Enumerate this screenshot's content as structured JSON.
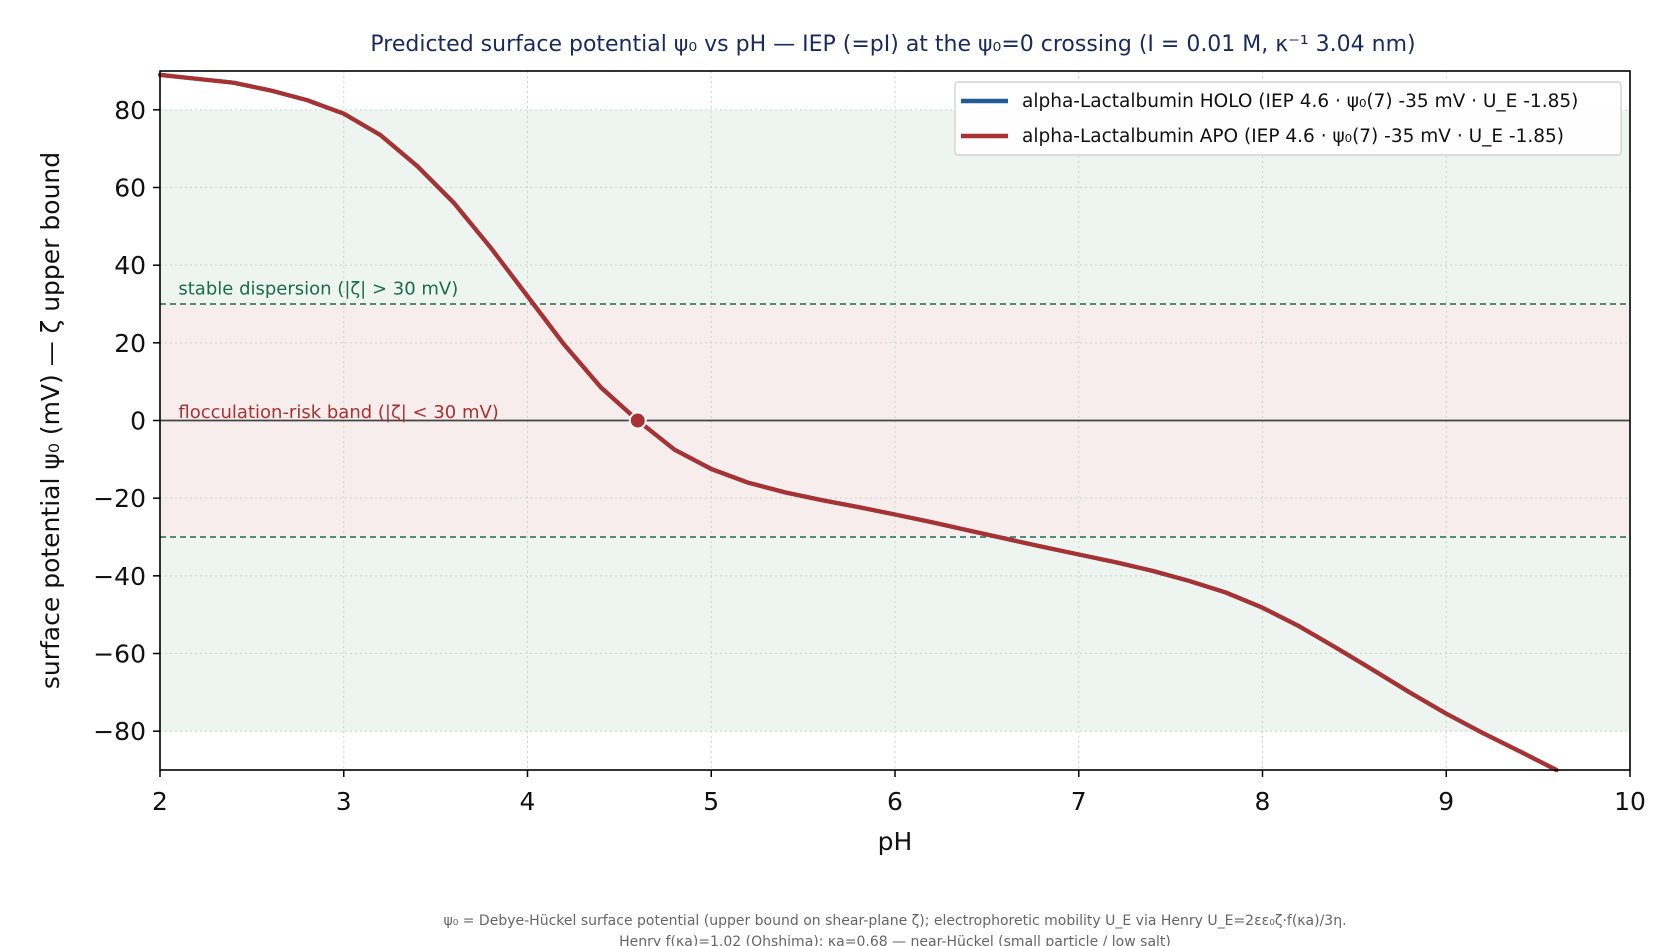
{
  "chart_data": {
    "type": "line",
    "title": "Predicted surface potential ψ₀ vs pH — IEP (=pI) at the ψ₀=0 crossing (I = 0.01 M, κ⁻¹ 3.04 nm)",
    "xlabel": "pH",
    "ylabel": "surface potential ψ₀ (mV) — ζ upper bound",
    "xlim": [
      2,
      10
    ],
    "ylim": [
      -90,
      90
    ],
    "xticks": [
      2,
      3,
      4,
      5,
      6,
      7,
      8,
      9,
      10
    ],
    "yticks": [
      -80,
      -60,
      -40,
      -20,
      0,
      20,
      40,
      60,
      80
    ],
    "xtick_labels": [
      "2",
      "3",
      "4",
      "5",
      "6",
      "7",
      "8",
      "9",
      "10"
    ],
    "ytick_labels": [
      "−80",
      "−60",
      "−40",
      "−20",
      "0",
      "20",
      "40",
      "60",
      "80"
    ],
    "grid": true,
    "legend_position": "top-right",
    "series": [
      {
        "name": "alpha-Lactalbumin HOLO (IEP 4.6 · ψ₀(7) -35 mV · U_E -1.85)",
        "color": "#1f5a99",
        "x": [
          2.0,
          2.2,
          2.4,
          2.6,
          2.8,
          3.0,
          3.2,
          3.4,
          3.6,
          3.8,
          4.0,
          4.2,
          4.4,
          4.6,
          4.8,
          5.0,
          5.2,
          5.4,
          5.6,
          5.8,
          6.0,
          6.2,
          6.4,
          6.6,
          6.8,
          7.0,
          7.2,
          7.4,
          7.6,
          7.8,
          8.0,
          8.2,
          8.4,
          8.6,
          8.8,
          9.0,
          9.2,
          9.4,
          9.6
        ],
        "y": [
          89,
          88,
          87,
          85,
          82.5,
          79,
          73.5,
          65.5,
          56,
          44.5,
          32,
          19.5,
          8.5,
          0,
          -7.5,
          -12.5,
          -16,
          -18.5,
          -20.5,
          -22.3,
          -24.2,
          -26.2,
          -28.3,
          -30.4,
          -32.5,
          -34.5,
          -36.5,
          -38.7,
          -41.3,
          -44.3,
          -48.2,
          -53,
          -58.5,
          -64.2,
          -70,
          -75.5,
          -80.5,
          -85.2,
          -90
        ],
        "hidden_behind": true
      },
      {
        "name": "alpha-Lactalbumin APO (IEP 4.6 · ψ₀(7) -35 mV · U_E -1.85)",
        "color": "#a83232",
        "x": [
          2.0,
          2.2,
          2.4,
          2.6,
          2.8,
          3.0,
          3.2,
          3.4,
          3.6,
          3.8,
          4.0,
          4.2,
          4.4,
          4.6,
          4.8,
          5.0,
          5.2,
          5.4,
          5.6,
          5.8,
          6.0,
          6.2,
          6.4,
          6.6,
          6.8,
          7.0,
          7.2,
          7.4,
          7.6,
          7.8,
          8.0,
          8.2,
          8.4,
          8.6,
          8.8,
          9.0,
          9.2,
          9.4,
          9.6
        ],
        "y": [
          89,
          88,
          87,
          85,
          82.5,
          79,
          73.5,
          65.5,
          56,
          44.5,
          32,
          19.5,
          8.5,
          0,
          -7.5,
          -12.5,
          -16,
          -18.5,
          -20.5,
          -22.3,
          -24.2,
          -26.2,
          -28.3,
          -30.4,
          -32.5,
          -34.5,
          -36.5,
          -38.7,
          -41.3,
          -44.3,
          -48.2,
          -53,
          -58.5,
          -64.2,
          -70,
          -75.5,
          -80.5,
          -85.2,
          -90
        ]
      }
    ],
    "iep_marker": {
      "x": 4.6,
      "y": 0,
      "color": "#a83232"
    },
    "zero_line": {
      "y": 0,
      "color": "#444444"
    },
    "threshold_lines": {
      "values": [
        30,
        -30
      ],
      "color": "#1b6b4e"
    },
    "bands": [
      {
        "name": "stable",
        "from": 30,
        "to": 80,
        "color": "#eef5f0"
      },
      {
        "name": "stable",
        "from": -80,
        "to": -30,
        "color": "#eef5f0"
      },
      {
        "name": "flocculation",
        "from": -30,
        "to": 30,
        "color": "#f8eded"
      }
    ],
    "annotations": [
      {
        "text": "stable dispersion (|ζ| > 30 mV)",
        "x": 2.1,
        "y": 32.5,
        "color": "#1b6b4e"
      },
      {
        "text": "flocculation-risk band (|ζ| < 30 mV)",
        "x": 2.1,
        "y": 0.7,
        "color": "#a83232"
      }
    ],
    "footnote": [
      "ψ₀ = Debye-Hückel surface potential (upper bound on shear-plane ζ); electrophoretic mobility U_E via Henry U_E=2εε₀ζ·f(κa)/3η.",
      "Henry f(κa)=1.02 (Ohshima); κa=0.68 — near-Hückel (small particle / low salt)"
    ]
  }
}
